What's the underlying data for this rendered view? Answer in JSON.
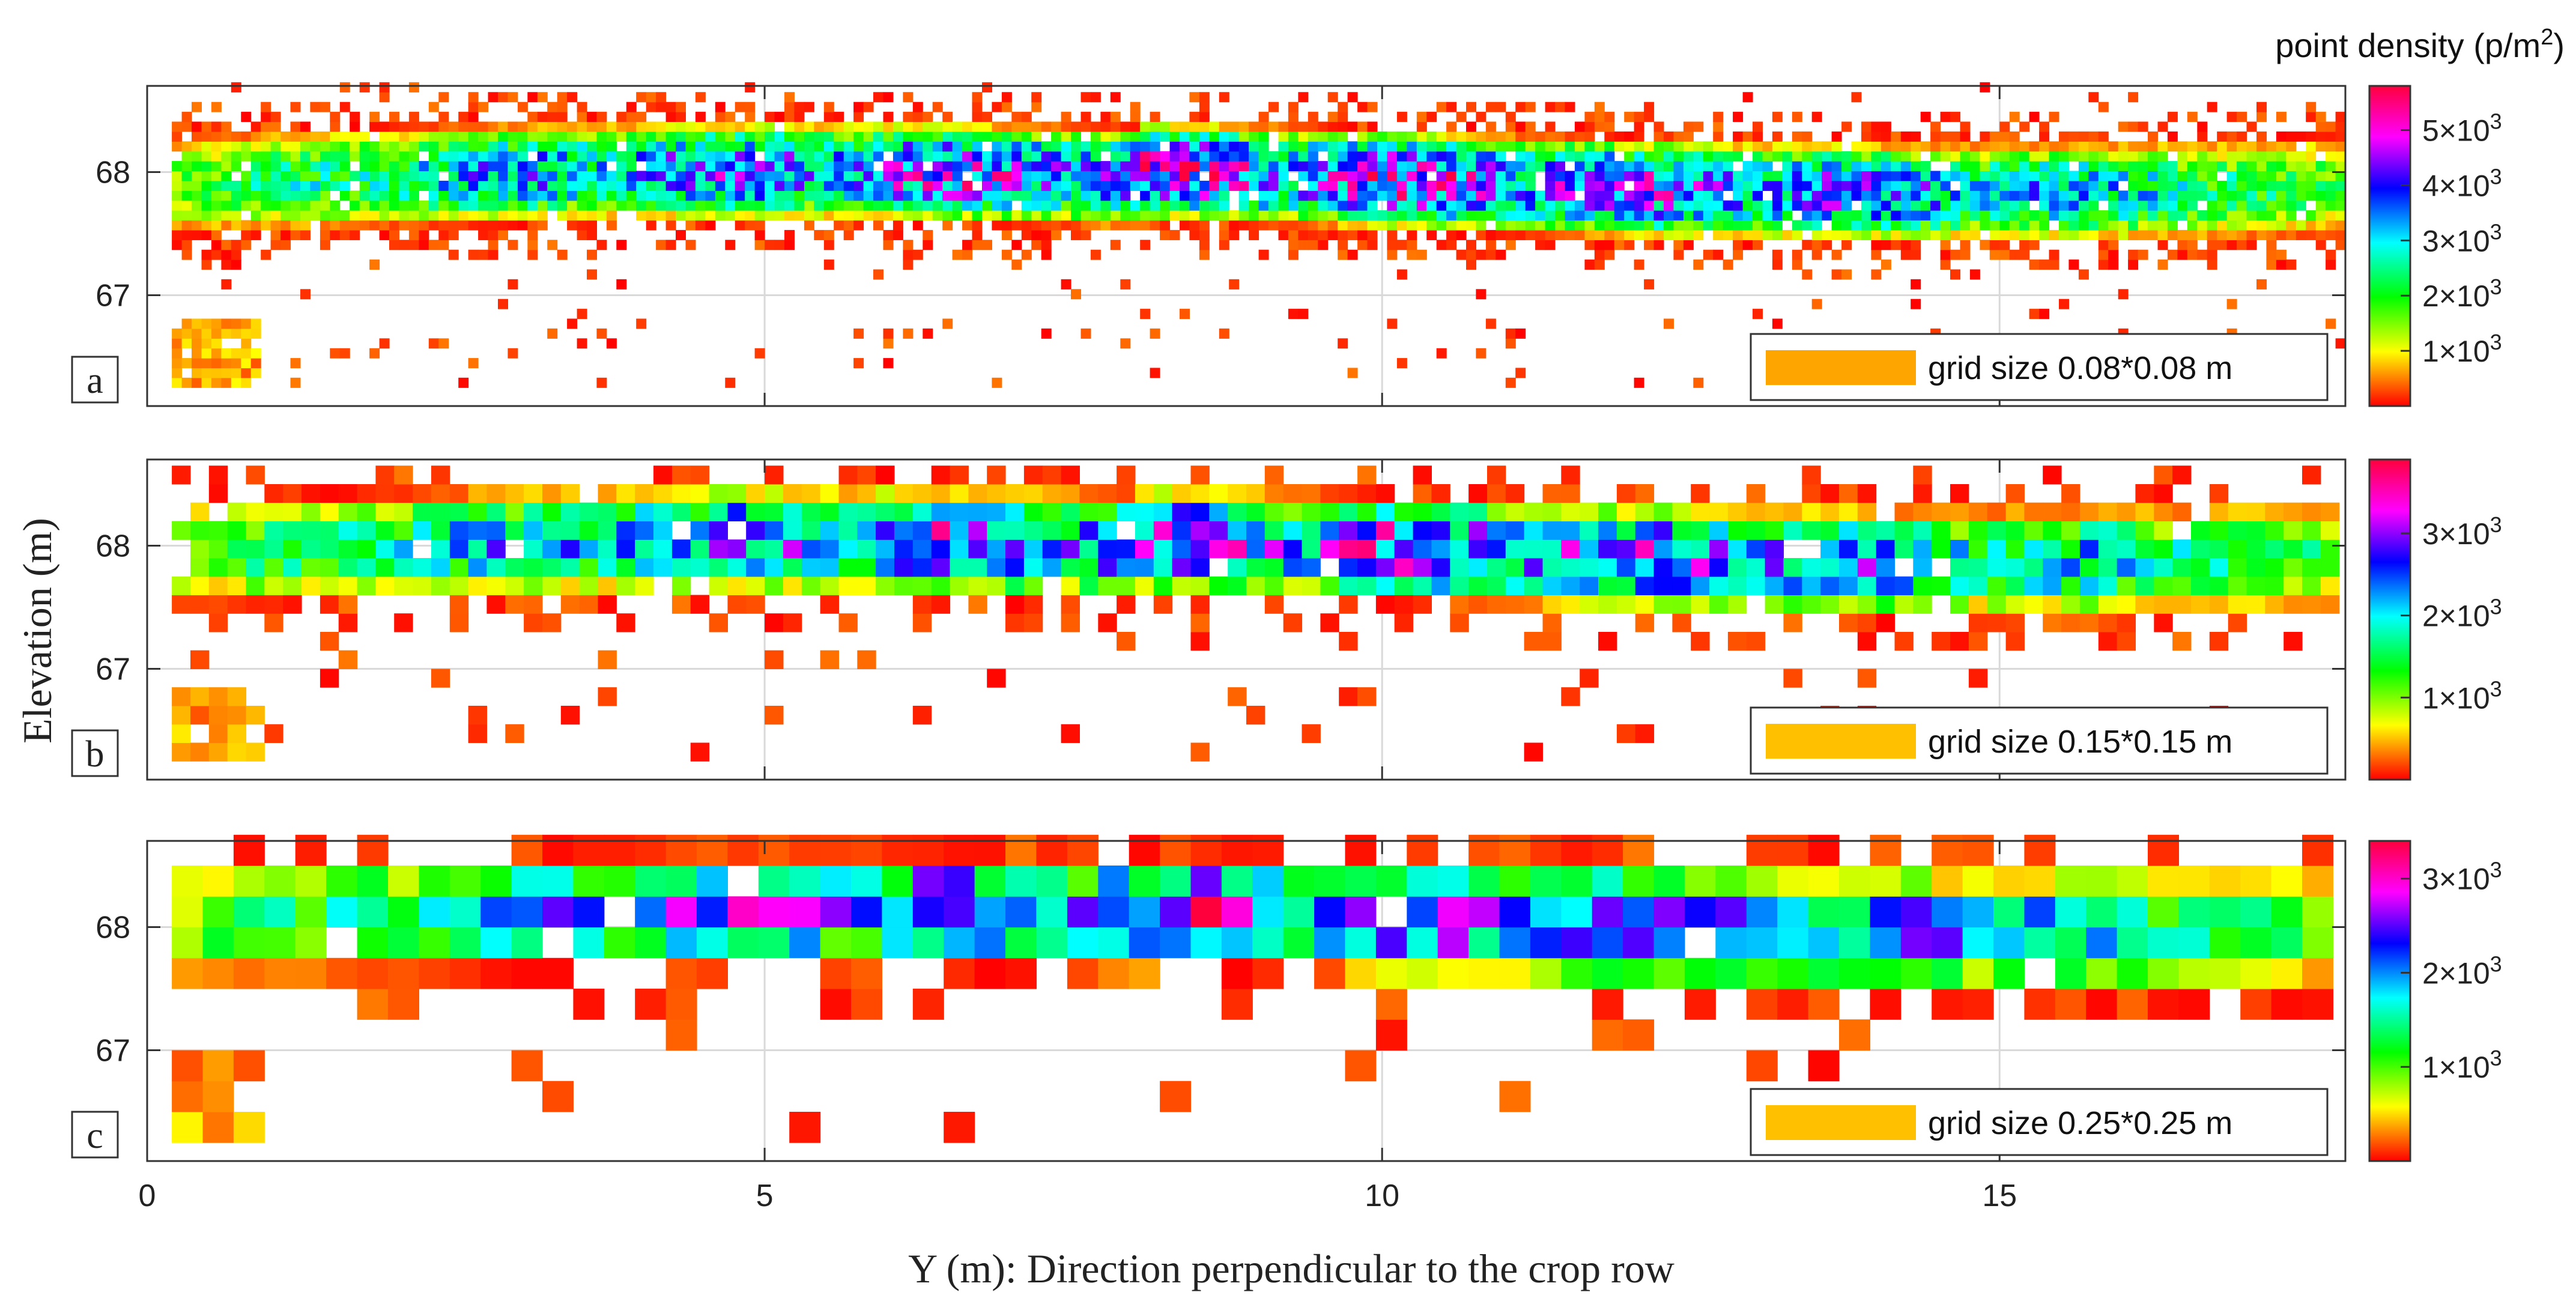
{
  "figure": {
    "ylabel": "Elevation (m)",
    "xlabel": "Y (m): Direction perpendicular to the crop row",
    "colorbar_title_main": "point density (p/m",
    "colorbar_title_sup": "2",
    "colorbar_title_close": ")"
  },
  "chart_data": [
    {
      "type": "heatmap",
      "panel_label": "a",
      "legend_text": "grid size 0.08*0.08 m",
      "legend_swatch_color": "#ffa500",
      "cell_size": 0.08,
      "x_range": [
        0,
        17.8
      ],
      "y_range": [
        66.1,
        68.7
      ],
      "x_ticks": [
        "0",
        "5",
        "10",
        "15"
      ],
      "x_tick_values": [
        0,
        5,
        10,
        15
      ],
      "y_ticks": [
        "67",
        "68"
      ],
      "y_tick_values": [
        67,
        68
      ],
      "color_max": 5800,
      "colorbar_ticks": [
        {
          "value": 1000,
          "base": "1×10",
          "exp": "3"
        },
        {
          "value": 2000,
          "base": "2×10",
          "exp": "3"
        },
        {
          "value": 3000,
          "base": "3×10",
          "exp": "3"
        },
        {
          "value": 4000,
          "base": "4×10",
          "exp": "3"
        },
        {
          "value": 5000,
          "base": "5×10",
          "exp": "3"
        }
      ],
      "band_center": 67.85,
      "band_halfwidth": 0.42,
      "peak_density": 5500,
      "grid": true
    },
    {
      "type": "heatmap",
      "panel_label": "b",
      "legend_text": "grid size 0.15*0.15 m",
      "legend_swatch_color": "#ffc000",
      "cell_size": 0.15,
      "x_range": [
        0,
        17.8
      ],
      "y_range": [
        66.1,
        68.7
      ],
      "x_ticks": [
        "0",
        "5",
        "10",
        "15"
      ],
      "x_tick_values": [
        0,
        5,
        10,
        15
      ],
      "y_ticks": [
        "67",
        "68"
      ],
      "y_tick_values": [
        67,
        68
      ],
      "color_max": 3900,
      "colorbar_ticks": [
        {
          "value": 1000,
          "base": "1×10",
          "exp": "3"
        },
        {
          "value": 2000,
          "base": "2×10",
          "exp": "3"
        },
        {
          "value": 3000,
          "base": "3×10",
          "exp": "3"
        }
      ],
      "band_center": 67.85,
      "band_halfwidth": 0.45,
      "peak_density": 3600,
      "grid": true
    },
    {
      "type": "heatmap",
      "panel_label": "c",
      "legend_text": "grid size 0.25*0.25 m",
      "legend_swatch_color": "#ffc000",
      "cell_size": 0.25,
      "x_range": [
        0,
        17.8
      ],
      "y_range": [
        66.1,
        68.7
      ],
      "x_ticks": [
        "0",
        "5",
        "10",
        "15"
      ],
      "x_tick_values": [
        0,
        5,
        10,
        15
      ],
      "y_ticks": [
        "67",
        "68"
      ],
      "y_tick_values": [
        67,
        68
      ],
      "color_max": 3400,
      "colorbar_ticks": [
        {
          "value": 1000,
          "base": "1×10",
          "exp": "3"
        },
        {
          "value": 2000,
          "base": "2×10",
          "exp": "3"
        },
        {
          "value": 3000,
          "base": "3×10",
          "exp": "3"
        }
      ],
      "band_center": 67.9,
      "band_halfwidth": 0.5,
      "peak_density": 3200,
      "grid": true
    }
  ]
}
